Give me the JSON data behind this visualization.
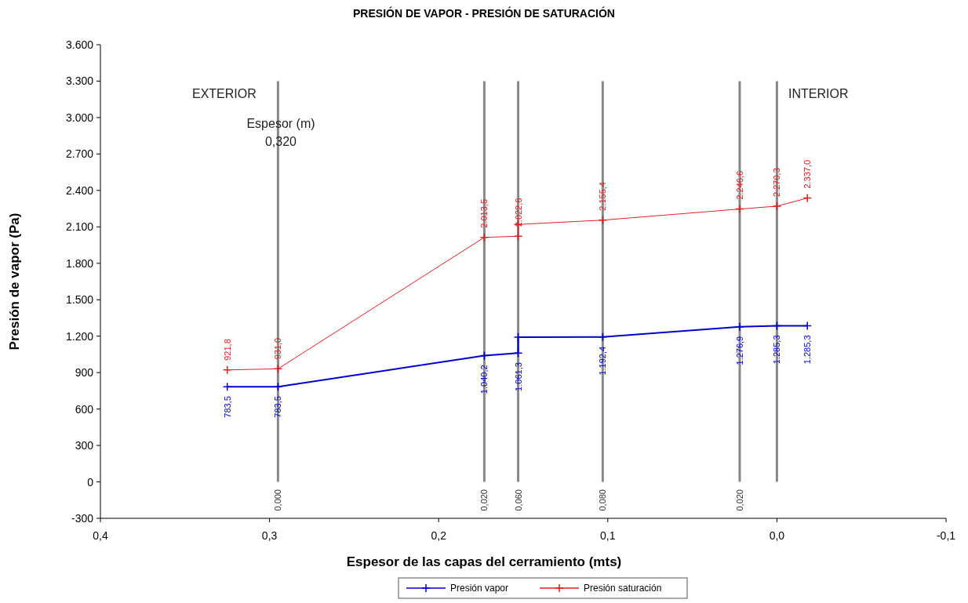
{
  "chart_data": {
    "type": "line",
    "title": "PRESIÓN DE VAPOR - PRESIÓN DE SATURACIÓN",
    "xlabel": "Espesor de las capas del cerramiento (mts)",
    "ylabel": "Presión de vapor (Pa)",
    "xlim": [
      0.4,
      -0.1
    ],
    "xticks": [
      {
        "value": 0.4,
        "label": "0,4"
      },
      {
        "value": 0.3,
        "label": "0,3"
      },
      {
        "value": 0.2,
        "label": "0,2"
      },
      {
        "value": 0.1,
        "label": "0,1"
      },
      {
        "value": 0,
        "label": "0,0"
      },
      {
        "value": -0.1,
        "label": "-0,1"
      }
    ],
    "ylim": [
      -300,
      3600
    ],
    "yticks": [
      -300,
      0,
      300,
      600,
      900,
      {
        "value": 1200,
        "label": "1.200"
      },
      {
        "value": 1500,
        "label": "1.500"
      },
      {
        "value": 1800,
        "label": "1.800"
      },
      {
        "value": 2100,
        "label": "2.100"
      },
      {
        "value": 2400,
        "label": "2.400"
      },
      {
        "value": 2700,
        "label": "2.700"
      },
      {
        "value": 3000,
        "label": "3.000"
      },
      {
        "value": 3300,
        "label": "3.300"
      },
      {
        "value": 3600,
        "label": "3.600"
      }
    ],
    "series": [
      {
        "name": "Presión vapor",
        "color": "#0000cc",
        "x": [
          0.325,
          0.295,
          0.173,
          0.153,
          0.153,
          0.103,
          0.022,
          0,
          -0.018
        ],
        "values": [
          783.5,
          783.5,
          1040.2,
          1061.3,
          1192,
          1192.4,
          1276.9,
          1285.3,
          1285.3
        ],
        "value_labels": [
          "783,5",
          "783,5",
          "1.040,2",
          "1.061,3",
          null,
          "1.192,4",
          "1.276,9",
          "1.285,3",
          "1.285,3"
        ]
      },
      {
        "name": "Presión saturación",
        "color": "#e02020",
        "x": [
          0.325,
          0.295,
          0.173,
          0.153,
          0.153,
          0.103,
          0.022,
          0,
          -0.018
        ],
        "values": [
          921.8,
          931.0,
          2013.5,
          2022.6,
          2120,
          2155.4,
          2246.6,
          2270.3,
          2337.0
        ],
        "value_labels": [
          "921,8",
          "931,0",
          "2.013,5",
          "2.022,6",
          null,
          "2.155,4",
          "2.246,6",
          "2.270,3",
          "2.337,0"
        ]
      }
    ],
    "ref_lines": [
      {
        "axis": "x",
        "value": 0.295,
        "color": "#888888"
      },
      {
        "axis": "x",
        "value": 0.173,
        "color": "#888888"
      },
      {
        "axis": "x",
        "value": 0.153,
        "color": "#888888"
      },
      {
        "axis": "x",
        "value": 0.103,
        "color": "#888888"
      },
      {
        "axis": "x",
        "value": 0.022,
        "color": "#888888"
      },
      {
        "axis": "x",
        "value": 0,
        "color": "#888888"
      }
    ],
    "annotations": [
      "EXTERIOR",
      "INTERIOR",
      "Espesor (m)",
      "0,320",
      "0,000",
      "0,020",
      "0,060",
      "0,080",
      "0,020"
    ],
    "marker": "cross",
    "line_style": "solid",
    "grid": false,
    "legend": "bottom"
  }
}
